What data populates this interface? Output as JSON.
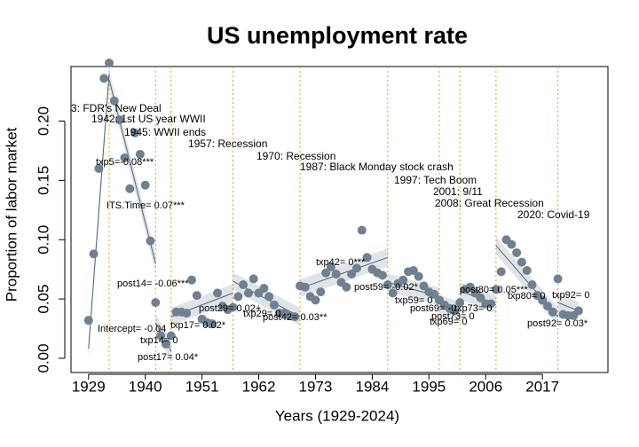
{
  "chart_data": {
    "type": "scatter",
    "title": "US unemployment rate",
    "x_label": "Years (1929-2024)",
    "y_label": "Proportion of labor market",
    "xlim": [
      1925.6,
      2029.7
    ],
    "ylim": [
      -0.012,
      0.246
    ],
    "xticks": [
      1929,
      1940,
      1951,
      1962,
      1973,
      1984,
      1995,
      2006,
      2017
    ],
    "yticks": [
      {
        "value": 0,
        "label": "0.00"
      },
      {
        "value": 0.05,
        "label": "0.05"
      },
      {
        "value": 0.1,
        "label": "0.10"
      },
      {
        "value": 0.15,
        "label": "0.15"
      },
      {
        "value": 0.2,
        "label": "0.20"
      }
    ],
    "point_color": "#708090",
    "fit_color": "#52667a",
    "event_color": "#e0a020",
    "x": [
      1929,
      1930,
      1931,
      1932,
      1933,
      1934,
      1935,
      1936,
      1937,
      1938,
      1939,
      1940,
      1941,
      1942,
      1943,
      1944,
      1945,
      1946,
      1947,
      1948,
      1949,
      1950,
      1951,
      1952,
      1953,
      1954,
      1955,
      1956,
      1957,
      1958,
      1959,
      1960,
      1961,
      1962,
      1963,
      1964,
      1965,
      1966,
      1967,
      1968,
      1969,
      1970,
      1971,
      1972,
      1973,
      1974,
      1975,
      1976,
      1977,
      1978,
      1979,
      1980,
      1981,
      1982,
      1983,
      1984,
      1985,
      1986,
      1987,
      1988,
      1989,
      1990,
      1991,
      1992,
      1993,
      1994,
      1995,
      1996,
      1997,
      1998,
      1999,
      2000,
      2001,
      2002,
      2003,
      2004,
      2005,
      2006,
      2007,
      2008,
      2009,
      2010,
      2011,
      2012,
      2013,
      2014,
      2015,
      2016,
      2017,
      2018,
      2019,
      2020,
      2021,
      2022,
      2023,
      2024
    ],
    "values": [
      0.032,
      0.088,
      0.16,
      0.236,
      0.249,
      0.217,
      0.201,
      0.169,
      0.143,
      0.19,
      0.172,
      0.146,
      0.099,
      0.047,
      0.019,
      0.012,
      0.019,
      0.039,
      0.039,
      0.038,
      0.066,
      0.053,
      0.033,
      0.03,
      0.029,
      0.055,
      0.044,
      0.041,
      0.043,
      0.052,
      0.062,
      0.055,
      0.067,
      0.055,
      0.059,
      0.052,
      0.045,
      0.038,
      0.038,
      0.036,
      0.035,
      0.061,
      0.06,
      0.052,
      0.049,
      0.056,
      0.072,
      0.077,
      0.071,
      0.064,
      0.06,
      0.071,
      0.076,
      0.108,
      0.085,
      0.075,
      0.072,
      0.07,
      0.062,
      0.055,
      0.063,
      0.066,
      0.073,
      0.074,
      0.069,
      0.061,
      0.056,
      0.054,
      0.049,
      0.045,
      0.042,
      0.04,
      0.047,
      0.058,
      0.06,
      0.055,
      0.051,
      0.046,
      0.046,
      0.058,
      0.073,
      0.1,
      0.096,
      0.089,
      0.081,
      0.074,
      0.062,
      0.053,
      0.049,
      0.044,
      0.039,
      0.067,
      0.037,
      0.036,
      0.036,
      0.04
    ],
    "fits": [
      {
        "x": [
          1929,
          1933
        ],
        "values": [
          0.008,
          0.24
        ]
      },
      {
        "x": [
          1933,
          1942
        ],
        "values": [
          0.235,
          0.08
        ]
      },
      {
        "x": [
          1942,
          1945
        ],
        "values": [
          0.03,
          0.006
        ]
      },
      {
        "x": [
          1945,
          1957
        ],
        "values": [
          0.035,
          0.055
        ]
      },
      {
        "x": [
          1957,
          1970
        ],
        "values": [
          0.065,
          0.035
        ]
      },
      {
        "x": [
          1970,
          1987
        ],
        "values": [
          0.059,
          0.085
        ]
      },
      {
        "x": [
          1987,
          1997
        ],
        "values": [
          0.064,
          0.052
        ]
      },
      {
        "x": [
          1997,
          2001
        ],
        "values": [
          0.046,
          0.04
        ]
      },
      {
        "x": [
          2001,
          2008
        ],
        "values": [
          0.057,
          0.045
        ]
      },
      {
        "x": [
          2008,
          2020
        ],
        "values": [
          0.095,
          0.035
        ]
      },
      {
        "x": [
          2020,
          2024
        ],
        "values": [
          0.047,
          0.04
        ]
      }
    ],
    "events": [
      {
        "year": 1933,
        "label": "3: FDR's New Deal"
      },
      {
        "year": 1942,
        "label": "1942: 1st US year WWII"
      },
      {
        "year": 1945,
        "label": "1945: WWII ends"
      },
      {
        "year": 1957,
        "label": "1957: Recession"
      },
      {
        "year": 1970,
        "label": "1970: Recession"
      },
      {
        "year": 1987,
        "label": "1987: Black Monday stock crash"
      },
      {
        "year": 1997,
        "label": "1997: Tech Boom"
      },
      {
        "year": 2001,
        "label": "2001: 9/11"
      },
      {
        "year": 2008,
        "label": "2008: Great Recession"
      },
      {
        "year": 2020,
        "label": "2020: Covid-19"
      }
    ],
    "annotations": [
      "txp5=-0.08***",
      "ITS.Time= 0.07***",
      "post14= -0.06***",
      "Intercept= -0.04",
      "txp14= 0",
      "post17= 0.04*",
      "txp17= 0.02*",
      "post29= 0.02+",
      "txp29= 0",
      "post42= 0.03**",
      "txp42= 0***",
      "post59= -0.02*",
      "txp59= 0",
      "post69= -0",
      "post73= 0",
      "txp69= 0",
      "txp73= 0",
      "post80= 0.05***",
      "txp80= 0",
      "txp92= 0",
      "post92= 0.03*"
    ]
  }
}
